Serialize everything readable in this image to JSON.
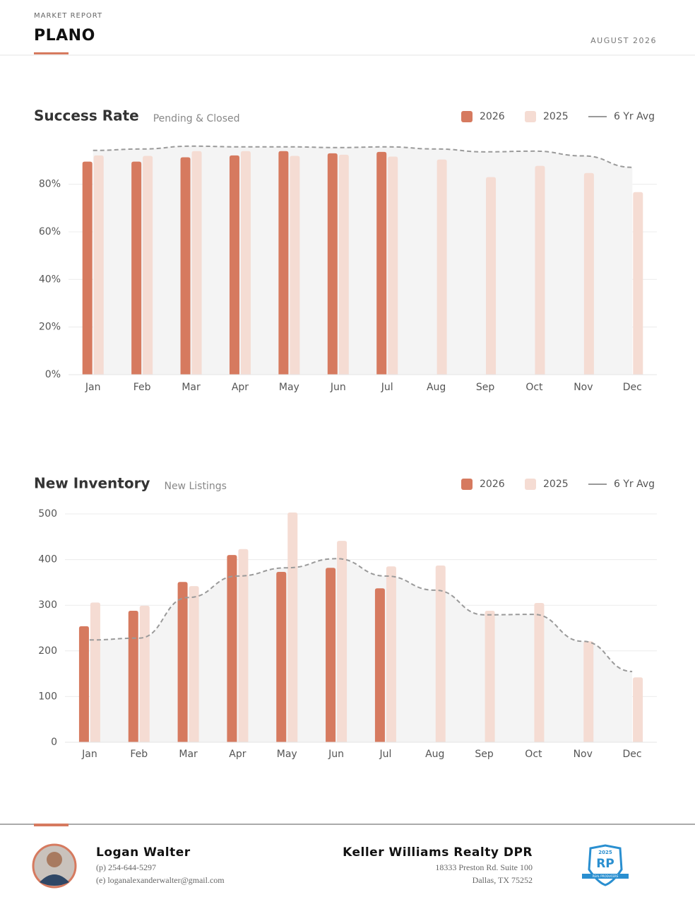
{
  "header": {
    "kicker": "MARKET REPORT",
    "title": "PLANO",
    "date": "AUGUST 2026"
  },
  "chart_data": [
    {
      "type": "bar",
      "title": "Success Rate",
      "subtitle": "Pending & Closed",
      "categories": [
        "Jan",
        "Feb",
        "Mar",
        "Apr",
        "May",
        "Jun",
        "Jul",
        "Aug",
        "Sep",
        "Oct",
        "Nov",
        "Dec"
      ],
      "series": [
        {
          "name": "2026",
          "color": "#d67a5f",
          "values": [
            89.5,
            89.5,
            91.3,
            92.1,
            93.9,
            93.0,
            93.6,
            null,
            null,
            null,
            null,
            null
          ]
        },
        {
          "name": "2025",
          "color": "#f5dcd3",
          "values": [
            92.1,
            91.9,
            93.9,
            93.9,
            91.9,
            92.4,
            91.6,
            90.4,
            83.0,
            87.7,
            84.7,
            76.7
          ]
        },
        {
          "name": "6 Yr Avg",
          "type": "line",
          "dashed": true,
          "color": "#9a9a9a",
          "values": [
            94.2,
            94.8,
            96.0,
            95.7,
            95.7,
            95.4,
            95.7,
            94.8,
            93.6,
            93.9,
            91.9,
            87.1
          ]
        }
      ],
      "ylim": [
        0,
        98
      ],
      "yticks": [
        {
          "value": 0,
          "label": "0%"
        },
        {
          "value": 20,
          "label": "20%"
        },
        {
          "value": 40,
          "label": "40%"
        },
        {
          "value": 60,
          "label": "60%"
        },
        {
          "value": 80,
          "label": "80%"
        }
      ],
      "grid": true
    },
    {
      "type": "bar",
      "title": "New Inventory",
      "subtitle": "New Listings",
      "categories": [
        "Jan",
        "Feb",
        "Mar",
        "Apr",
        "May",
        "Jun",
        "Jul",
        "Aug",
        "Sep",
        "Oct",
        "Nov",
        "Dec"
      ],
      "series": [
        {
          "name": "2026",
          "color": "#d67a5f",
          "values": [
            254,
            288,
            351,
            410,
            373,
            382,
            337,
            null,
            null,
            null,
            null,
            null
          ]
        },
        {
          "name": "2025",
          "color": "#f5dcd3",
          "values": [
            306,
            299,
            342,
            423,
            503,
            441,
            385,
            387,
            288,
            305,
            221,
            142
          ]
        },
        {
          "name": "6 Yr Avg",
          "type": "line",
          "dashed": true,
          "color": "#9a9a9a",
          "values": [
            224,
            228,
            317,
            364,
            382,
            402,
            364,
            333,
            279,
            280,
            221,
            155
          ]
        }
      ],
      "ylim": [
        0,
        500
      ],
      "yticks": [
        0,
        100,
        200,
        300,
        400,
        500
      ],
      "grid": true
    }
  ],
  "footer": {
    "agent": {
      "name": "Logan Walter",
      "phone": "(p) 254-644-5297",
      "email": "(e) loganalexanderwalter@gmail.com"
    },
    "brokerage": {
      "name": "Keller Williams Realty DPR",
      "address1": "18333 Preston Rd. Suite 100",
      "address2": "Dallas, TX 75252"
    },
    "badge": {
      "year": "2025",
      "logo": "RP",
      "text": "REAL PRODUCERS"
    }
  }
}
